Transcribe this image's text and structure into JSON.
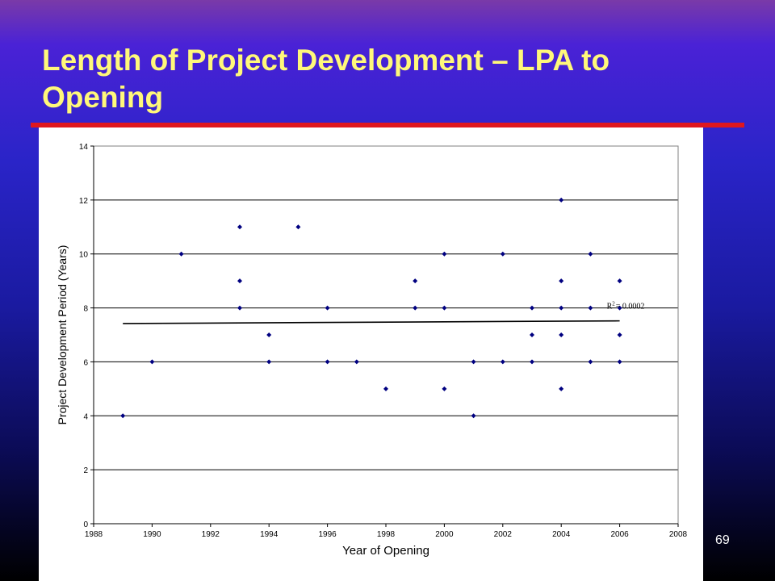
{
  "slide": {
    "title": "Length of Project Development – LPA to Opening",
    "page_number": "69"
  },
  "colors": {
    "title": "#fff87a",
    "rule": "#e0171e",
    "marker": "#000080",
    "trendline": "#000000"
  },
  "chart_data": {
    "type": "scatter",
    "title": "",
    "xlabel": "Year of Opening",
    "ylabel": "Project Development Period (Years)",
    "xlim": [
      1988,
      2008
    ],
    "ylim": [
      0,
      14
    ],
    "xticks": [
      "1988",
      "1990",
      "1992",
      "1994",
      "1996",
      "1998",
      "2000",
      "2002",
      "2004",
      "2006",
      "2008"
    ],
    "yticks": [
      "0",
      "2",
      "4",
      "6",
      "8",
      "10",
      "12",
      "14"
    ],
    "grid": "horizontal",
    "legend": "none",
    "points": [
      [
        1989,
        4
      ],
      [
        1990,
        6
      ],
      [
        1991,
        10
      ],
      [
        1993,
        11
      ],
      [
        1993,
        9
      ],
      [
        1993,
        8
      ],
      [
        1994,
        7
      ],
      [
        1994,
        6
      ],
      [
        1995,
        11
      ],
      [
        1996,
        8
      ],
      [
        1996,
        6
      ],
      [
        1997,
        6
      ],
      [
        1998,
        5
      ],
      [
        1999,
        9
      ],
      [
        1999,
        8
      ],
      [
        2000,
        10
      ],
      [
        2000,
        8
      ],
      [
        2000,
        5
      ],
      [
        2001,
        6
      ],
      [
        2001,
        4
      ],
      [
        2002,
        10
      ],
      [
        2002,
        6
      ],
      [
        2003,
        8
      ],
      [
        2003,
        7
      ],
      [
        2003,
        6
      ],
      [
        2004,
        12
      ],
      [
        2004,
        9
      ],
      [
        2004,
        8
      ],
      [
        2004,
        7
      ],
      [
        2004,
        5
      ],
      [
        2005,
        10
      ],
      [
        2005,
        8
      ],
      [
        2005,
        6
      ],
      [
        2006,
        9
      ],
      [
        2006,
        8
      ],
      [
        2006,
        7
      ],
      [
        2006,
        6
      ]
    ],
    "trendline": {
      "x": [
        1989,
        2006
      ],
      "y": [
        7.42,
        7.52
      ]
    },
    "annotation": {
      "label": "R",
      "superscript": "2",
      "value": "= 0.0002"
    }
  }
}
